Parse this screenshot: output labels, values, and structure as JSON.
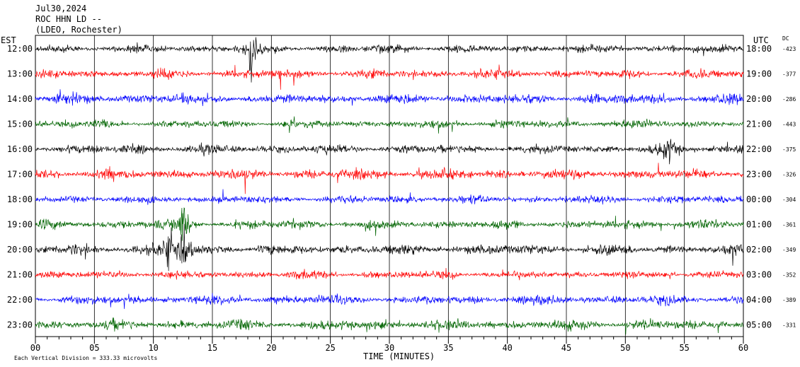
{
  "header": {
    "date": "Jul30,2024",
    "station": "ROC HHN LD --",
    "location": "(LDEO, Rochester)"
  },
  "left_axis_label": "EST",
  "right_axis_label": "UTC",
  "dc_label": "DC",
  "xlabel": "TIME (MINUTES)",
  "footnote": "Each Vertical Division =  333.33 microvolts",
  "colors": {
    "trace_cycle": [
      "#000000",
      "#ff0000",
      "#0000ff",
      "#006400"
    ],
    "grid": "#000000"
  },
  "chart_data": {
    "type": "line",
    "description_kind": "helicorder",
    "xlim": [
      0,
      60
    ],
    "x_ticks": [
      "00",
      "05",
      "10",
      "15",
      "20",
      "25",
      "30",
      "35",
      "40",
      "45",
      "50",
      "55",
      "60"
    ],
    "rows": [
      {
        "est": "12:00",
        "utc": "18:00",
        "dc": "-423",
        "color": "#000000"
      },
      {
        "est": "13:00",
        "utc": "19:00",
        "dc": "-377",
        "color": "#ff0000"
      },
      {
        "est": "14:00",
        "utc": "20:00",
        "dc": "-286",
        "color": "#0000ff"
      },
      {
        "est": "15:00",
        "utc": "21:00",
        "dc": "-443",
        "color": "#006400"
      },
      {
        "est": "16:00",
        "utc": "22:00",
        "dc": "-375",
        "color": "#000000"
      },
      {
        "est": "17:00",
        "utc": "23:00",
        "dc": "-326",
        "color": "#ff0000"
      },
      {
        "est": "18:00",
        "utc": "00:00",
        "dc": "-304",
        "color": "#0000ff"
      },
      {
        "est": "19:00",
        "utc": "01:00",
        "dc": "-361",
        "color": "#006400"
      },
      {
        "est": "20:00",
        "utc": "02:00",
        "dc": "-349",
        "color": "#000000"
      },
      {
        "est": "21:00",
        "utc": "03:00",
        "dc": "-352",
        "color": "#ff0000"
      },
      {
        "est": "22:00",
        "utc": "04:00",
        "dc": "-389",
        "color": "#0000ff"
      },
      {
        "est": "23:00",
        "utc": "05:00",
        "dc": "-331",
        "color": "#006400"
      }
    ],
    "events": [
      {
        "row": 0,
        "minute": 18.2,
        "amplitude": 2.2
      },
      {
        "row": 4,
        "minute": 53.5,
        "amplitude": 0.8
      },
      {
        "row": 7,
        "minute": 12.5,
        "amplitude": 1.6
      },
      {
        "row": 8,
        "minute": 12.5,
        "amplitude": 1.4
      },
      {
        "row": 8,
        "minute": 11.2,
        "amplitude": 1.0
      }
    ]
  }
}
